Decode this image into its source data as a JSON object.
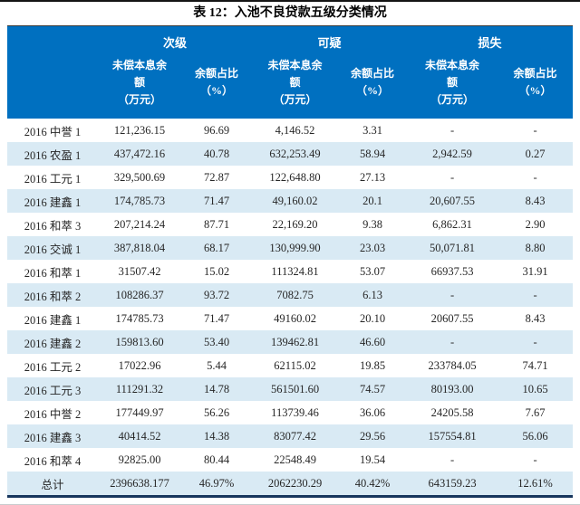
{
  "title": "表 12：入池不良贷款五级分类情况",
  "colors": {
    "header_bg": "#0070C0",
    "header_text": "#FFFFFF",
    "stripe_bg": "#D9EAF4",
    "top_rule": "#141414",
    "bottom_border": "#17365D"
  },
  "table": {
    "groups": [
      "次级",
      "可疑",
      "损失"
    ],
    "sub": {
      "balance": "未偿本息余额",
      "balance_unit": "（万元）",
      "ratio": "余额占比",
      "ratio_unit": "（%）"
    },
    "rows": [
      {
        "label": "2016 中誉 1",
        "values": [
          "121,236.15",
          "96.69",
          "4,146.52",
          "3.31",
          "-",
          "-"
        ]
      },
      {
        "label": "2016 农盈 1",
        "values": [
          "437,472.16",
          "40.78",
          "632,253.49",
          "58.94",
          "2,942.59",
          "0.27"
        ]
      },
      {
        "label": "2016 工元 1",
        "values": [
          "329,500.69",
          "72.87",
          "122,648.80",
          "27.13",
          "-",
          "-"
        ]
      },
      {
        "label": "2016 建鑫 1",
        "values": [
          "174,785.73",
          "71.47",
          "49,160.02",
          "20.1",
          "20,607.55",
          "8.43"
        ]
      },
      {
        "label": "2016 和萃 3",
        "values": [
          "207,214.24",
          "87.71",
          "22,169.20",
          "9.38",
          "6,862.31",
          "2.90"
        ]
      },
      {
        "label": "2016 交诚 1",
        "values": [
          "387,818.04",
          "68.17",
          "130,999.90",
          "23.03",
          "50,071.81",
          "8.80"
        ]
      },
      {
        "label": "2016 和萃 1",
        "values": [
          "31507.42",
          "15.02",
          "111324.81",
          "53.07",
          "66937.53",
          "31.91"
        ]
      },
      {
        "label": "2016 和萃 2",
        "values": [
          "108286.37",
          "93.72",
          "7082.75",
          "6.13",
          "-",
          "-"
        ]
      },
      {
        "label": "2016 建鑫 1",
        "values": [
          "174785.73",
          "71.47",
          "49160.02",
          "20.10",
          "20607.55",
          "8.43"
        ]
      },
      {
        "label": "2016 建鑫 2",
        "values": [
          "159813.60",
          "53.40",
          "139462.81",
          "46.60",
          "-",
          "-"
        ]
      },
      {
        "label": "2016 工元 2",
        "values": [
          "17022.96",
          "5.44",
          "62115.02",
          "19.85",
          "233784.05",
          "74.71"
        ]
      },
      {
        "label": "2016 工元 3",
        "values": [
          "111291.32",
          "14.78",
          "561501.60",
          "74.57",
          "80193.00",
          "10.65"
        ]
      },
      {
        "label": "2016 中誉 2",
        "values": [
          "177449.97",
          "56.26",
          "113739.46",
          "36.06",
          "24205.58",
          "7.67"
        ]
      },
      {
        "label": "2016 建鑫 3",
        "values": [
          "40414.52",
          "14.38",
          "83077.42",
          "29.56",
          "157554.81",
          "56.06"
        ]
      },
      {
        "label": "2016 和萃 4",
        "values": [
          "92825.00",
          "80.44",
          "22548.49",
          "19.54",
          "-",
          "-"
        ]
      }
    ],
    "total": {
      "label": "总计",
      "values": [
        "2396638.177",
        "46.97%",
        "2062230.29",
        "40.42%",
        "643159.23",
        "12.61%"
      ]
    }
  }
}
